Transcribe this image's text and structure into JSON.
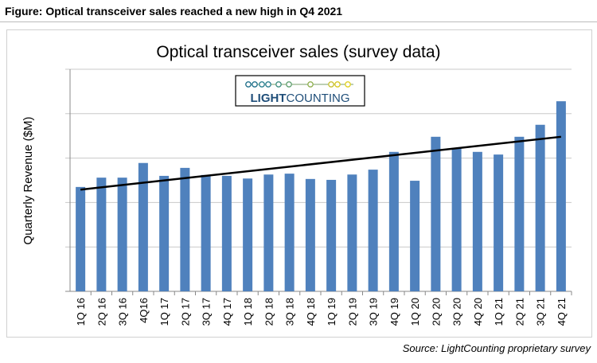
{
  "caption": "Figure: Optical transceiver sales reached a new high in Q4 2021",
  "source": "Source: LightCounting proprietary survey",
  "logo": {
    "text_bold": "LIGHT",
    "text_regular": "COUNTING"
  },
  "chart_data": {
    "type": "bar",
    "title": "Optical transceiver sales (survey data)",
    "ylabel": "Quarterly Revenue ($M)",
    "xlabel": "",
    "y_tick_labels_shown": false,
    "ylim": [
      0,
      5
    ],
    "grid": true,
    "bar_color": "#4f81bd",
    "categories": [
      "1Q 16",
      "2Q 16",
      "3Q 16",
      "4Q16",
      "1Q 17",
      "2Q 17",
      "3Q 17",
      "4Q 17",
      "1Q 18",
      "2Q 18",
      "3Q 18",
      "4Q 18",
      "1Q 19",
      "2Q 19",
      "3Q 19",
      "4Q 19",
      "1Q 20",
      "2Q 20",
      "3Q 20",
      "4Q 20",
      "1Q 21",
      "2Q 21",
      "3Q 21",
      "4Q 21"
    ],
    "values": [
      2.35,
      2.56,
      2.56,
      2.89,
      2.6,
      2.78,
      2.62,
      2.6,
      2.54,
      2.63,
      2.65,
      2.53,
      2.51,
      2.63,
      2.74,
      3.14,
      2.49,
      3.48,
      3.23,
      3.14,
      3.08,
      3.48,
      3.75,
      4.28
    ],
    "trendline": {
      "type": "linear",
      "start": 2.29,
      "end": 3.48,
      "color": "#000000"
    }
  }
}
